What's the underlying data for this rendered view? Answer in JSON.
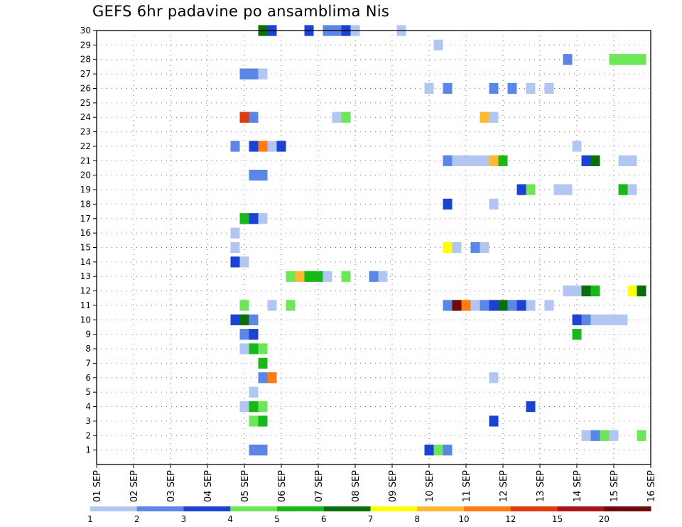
{
  "chart_data": {
    "type": "heatmap",
    "title": "GEFS 6hr padavine po ansamblima Nis",
    "xlabel": "",
    "ylabel": "",
    "x_tick_labels": [
      "01 SEP",
      "02 SEP",
      "03 SEP",
      "04 SEP",
      "05 SEP",
      "06 SEP",
      "07 SEP",
      "08 SEP",
      "09 SEP",
      "10 SEP",
      "11 SEP",
      "12 SEP",
      "13 SEP",
      "14 SEP",
      "15 SEP",
      "16 SEP"
    ],
    "xlim": [
      0,
      15
    ],
    "y_tick_labels": [
      "1",
      "2",
      "3",
      "4",
      "5",
      "6",
      "7",
      "8",
      "9",
      "10",
      "11",
      "12",
      "13",
      "14",
      "15",
      "16",
      "17",
      "18",
      "19",
      "20",
      "21",
      "22",
      "23",
      "24",
      "25",
      "26",
      "27",
      "28",
      "29",
      "30"
    ],
    "ylim": [
      0,
      30
    ],
    "grid": true,
    "colorbar": {
      "position": "bottom",
      "labels": [
        "1",
        "2",
        "3",
        "4",
        "5",
        "6",
        "7",
        "8",
        "10",
        "12",
        "15",
        "20"
      ],
      "colors": [
        "#b3c6f2",
        "#5c86e6",
        "#1a43d4",
        "#6ee65a",
        "#18b818",
        "#0a6e0a",
        "#ffff00",
        "#ffb830",
        "#ff7a10",
        "#e03a10",
        "#a8141c",
        "#6e0a0a"
      ]
    },
    "cells": [
      [
        4.5,
        30,
        6
      ],
      [
        4.75,
        30,
        3
      ],
      [
        5.75,
        30,
        3
      ],
      [
        6.25,
        30,
        2
      ],
      [
        6.5,
        30,
        2
      ],
      [
        6.75,
        30,
        3
      ],
      [
        7.0,
        30,
        1
      ],
      [
        8.25,
        30,
        1
      ],
      [
        9.25,
        29,
        1
      ],
      [
        12.75,
        28,
        2
      ],
      [
        14.0,
        28,
        4
      ],
      [
        14.25,
        28,
        4
      ],
      [
        14.5,
        28,
        4
      ],
      [
        14.75,
        28,
        4
      ],
      [
        4.0,
        27,
        2
      ],
      [
        4.25,
        27,
        2
      ],
      [
        4.5,
        27,
        1
      ],
      [
        9.0,
        26,
        1
      ],
      [
        9.5,
        26,
        2
      ],
      [
        10.75,
        26,
        2
      ],
      [
        11.25,
        26,
        2
      ],
      [
        11.75,
        26,
        1
      ],
      [
        12.25,
        26,
        1
      ],
      [
        4.0,
        24,
        10
      ],
      [
        4.25,
        24,
        2
      ],
      [
        6.5,
        24,
        1
      ],
      [
        6.75,
        24,
        4
      ],
      [
        10.5,
        24,
        8
      ],
      [
        10.75,
        24,
        1
      ],
      [
        3.75,
        22,
        2
      ],
      [
        4.25,
        22,
        3
      ],
      [
        4.5,
        22,
        9
      ],
      [
        4.75,
        22,
        1
      ],
      [
        5.0,
        22,
        3
      ],
      [
        13.0,
        22,
        1
      ],
      [
        9.5,
        21,
        2
      ],
      [
        9.75,
        21,
        1
      ],
      [
        10.0,
        21,
        1
      ],
      [
        10.25,
        21,
        1
      ],
      [
        10.5,
        21,
        1
      ],
      [
        10.75,
        21,
        8
      ],
      [
        11.0,
        21,
        5
      ],
      [
        13.25,
        21,
        3
      ],
      [
        13.5,
        21,
        6
      ],
      [
        14.25,
        21,
        1
      ],
      [
        14.5,
        21,
        1
      ],
      [
        4.25,
        20,
        2
      ],
      [
        4.5,
        20,
        2
      ],
      [
        11.5,
        19,
        3
      ],
      [
        11.75,
        19,
        4
      ],
      [
        12.5,
        19,
        1
      ],
      [
        12.75,
        19,
        1
      ],
      [
        14.25,
        19,
        5
      ],
      [
        14.5,
        19,
        1
      ],
      [
        9.5,
        18,
        3
      ],
      [
        10.75,
        18,
        1
      ],
      [
        4.0,
        17,
        5
      ],
      [
        4.25,
        17,
        3
      ],
      [
        4.5,
        17,
        1
      ],
      [
        3.75,
        16,
        1
      ],
      [
        3.75,
        15,
        1
      ],
      [
        9.5,
        15,
        7
      ],
      [
        9.75,
        15,
        1
      ],
      [
        10.25,
        15,
        2
      ],
      [
        10.5,
        15,
        1
      ],
      [
        3.75,
        14,
        3
      ],
      [
        4.0,
        14,
        1
      ],
      [
        5.25,
        13,
        4
      ],
      [
        5.5,
        13,
        8
      ],
      [
        5.75,
        13,
        5
      ],
      [
        6.0,
        13,
        5
      ],
      [
        6.25,
        13,
        1
      ],
      [
        6.75,
        13,
        4
      ],
      [
        7.5,
        13,
        2
      ],
      [
        7.75,
        13,
        1
      ],
      [
        12.75,
        12,
        1
      ],
      [
        13.0,
        12,
        1
      ],
      [
        13.25,
        12,
        6
      ],
      [
        13.5,
        12,
        5
      ],
      [
        14.5,
        12,
        7
      ],
      [
        14.75,
        12,
        6
      ],
      [
        4.0,
        11,
        4
      ],
      [
        4.75,
        11,
        1
      ],
      [
        5.25,
        11,
        4
      ],
      [
        9.5,
        11,
        2
      ],
      [
        9.75,
        11,
        12
      ],
      [
        10.0,
        11,
        9
      ],
      [
        10.25,
        11,
        1
      ],
      [
        10.5,
        11,
        2
      ],
      [
        10.75,
        11,
        3
      ],
      [
        11.0,
        11,
        6
      ],
      [
        11.25,
        11,
        2
      ],
      [
        11.5,
        11,
        3
      ],
      [
        11.75,
        11,
        1
      ],
      [
        12.25,
        11,
        1
      ],
      [
        3.75,
        10,
        3
      ],
      [
        4.0,
        10,
        6
      ],
      [
        4.25,
        10,
        2
      ],
      [
        13.0,
        10,
        3
      ],
      [
        13.25,
        10,
        2
      ],
      [
        13.5,
        10,
        1
      ],
      [
        13.75,
        10,
        1
      ],
      [
        14.0,
        10,
        1
      ],
      [
        14.25,
        10,
        1
      ],
      [
        4.0,
        9,
        2
      ],
      [
        4.25,
        9,
        3
      ],
      [
        13.0,
        9,
        5
      ],
      [
        4.0,
        8,
        1
      ],
      [
        4.25,
        8,
        5
      ],
      [
        4.5,
        8,
        4
      ],
      [
        4.5,
        7,
        5
      ],
      [
        4.5,
        6,
        2
      ],
      [
        4.75,
        6,
        9
      ],
      [
        10.75,
        6,
        1
      ],
      [
        4.25,
        5,
        1
      ],
      [
        4.0,
        4,
        1
      ],
      [
        4.25,
        4,
        5
      ],
      [
        4.5,
        4,
        4
      ],
      [
        11.75,
        4,
        3
      ],
      [
        4.25,
        3,
        4
      ],
      [
        4.5,
        3,
        5
      ],
      [
        10.75,
        3,
        3
      ],
      [
        13.25,
        2,
        1
      ],
      [
        13.5,
        2,
        2
      ],
      [
        13.75,
        2,
        4
      ],
      [
        14.0,
        2,
        1
      ],
      [
        14.75,
        2,
        4
      ],
      [
        4.25,
        1,
        2
      ],
      [
        4.5,
        1,
        2
      ],
      [
        9.0,
        1,
        3
      ],
      [
        9.25,
        1,
        4
      ],
      [
        9.5,
        1,
        2
      ]
    ]
  }
}
